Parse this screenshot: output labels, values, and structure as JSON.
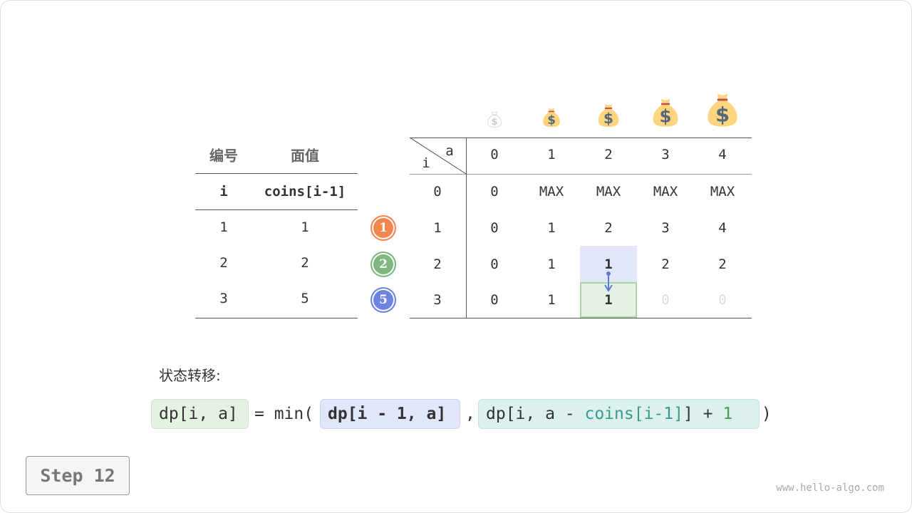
{
  "left_table": {
    "headers_cn": [
      "编号",
      "面值"
    ],
    "headers": [
      "i",
      "coins[i-1]"
    ],
    "rows": [
      [
        "1",
        "1"
      ],
      [
        "2",
        "2"
      ],
      [
        "3",
        "5"
      ]
    ]
  },
  "badges": [
    {
      "label": "1",
      "color": "#f5854f"
    },
    {
      "label": "2",
      "color": "#7fb77e"
    },
    {
      "label": "5",
      "color": "#6c84e0"
    }
  ],
  "dp_table": {
    "corner_col": "a",
    "corner_row": "i",
    "col_headers": [
      "0",
      "1",
      "2",
      "3",
      "4"
    ],
    "row_headers": [
      "0",
      "1",
      "2",
      "3"
    ],
    "cells": [
      [
        "0",
        "MAX",
        "MAX",
        "MAX",
        "MAX"
      ],
      [
        "0",
        "1",
        "2",
        "3",
        "4"
      ],
      [
        "0",
        "1",
        "1",
        "2",
        "2"
      ],
      [
        "0",
        "1",
        "1",
        "0",
        "0"
      ]
    ],
    "highlight_source": {
      "row": 2,
      "col": 2,
      "color": "#e1e6f8"
    },
    "highlight_target": {
      "row": 3,
      "col": 2,
      "color": "#e5f1e3"
    },
    "faded_cells": [
      [
        3,
        3
      ],
      [
        3,
        4
      ]
    ],
    "coin_icons": [
      "money-bag-faded",
      "money-bag",
      "money-bag",
      "money-bag",
      "money-bag"
    ]
  },
  "transition": {
    "label": "状态转移:",
    "lhs": "dp[i, a]",
    "eq": "= min(",
    "term1": "dp[i - 1, a]",
    "comma": ",",
    "term2_a": "dp[i, a - ",
    "term2_coins": "coins[i-1]",
    "term2_b": "] + ",
    "term2_one": "1",
    "close": ")"
  },
  "step_label": "Step 12",
  "watermark": "www.hello-algo.com"
}
